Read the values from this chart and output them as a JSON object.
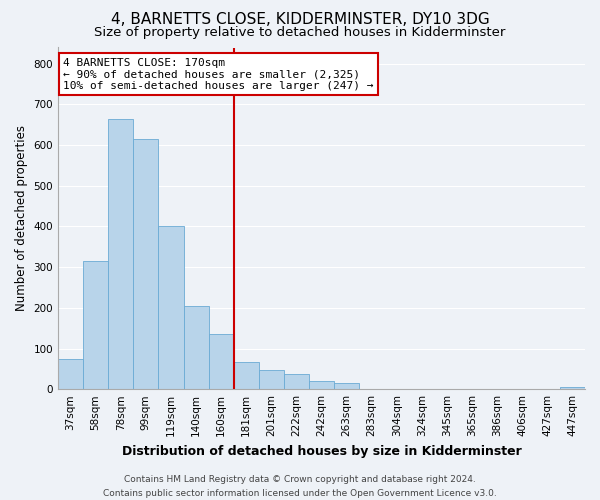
{
  "title": "4, BARNETTS CLOSE, KIDDERMINSTER, DY10 3DG",
  "subtitle": "Size of property relative to detached houses in Kidderminster",
  "xlabel": "Distribution of detached houses by size in Kidderminster",
  "ylabel": "Number of detached properties",
  "categories": [
    "37sqm",
    "58sqm",
    "78sqm",
    "99sqm",
    "119sqm",
    "140sqm",
    "160sqm",
    "181sqm",
    "201sqm",
    "222sqm",
    "242sqm",
    "263sqm",
    "283sqm",
    "304sqm",
    "324sqm",
    "345sqm",
    "365sqm",
    "386sqm",
    "406sqm",
    "427sqm",
    "447sqm"
  ],
  "values": [
    75,
    315,
    665,
    615,
    400,
    205,
    135,
    68,
    47,
    38,
    20,
    15,
    0,
    0,
    0,
    0,
    0,
    0,
    0,
    0,
    5
  ],
  "bar_color": "#b8d4ea",
  "bar_edge_color": "#6aaad4",
  "vline_x_index": 7,
  "vline_color": "#cc0000",
  "annotation_line1": "4 BARNETTS CLOSE: 170sqm",
  "annotation_line2": "← 90% of detached houses are smaller (2,325)",
  "annotation_line3": "10% of semi-detached houses are larger (247) →",
  "annotation_box_color": "#ffffff",
  "annotation_box_edge": "#cc0000",
  "ylim": [
    0,
    840
  ],
  "yticks": [
    0,
    100,
    200,
    300,
    400,
    500,
    600,
    700,
    800
  ],
  "background_color": "#eef2f7",
  "grid_color": "#ffffff",
  "footer_line1": "Contains HM Land Registry data © Crown copyright and database right 2024.",
  "footer_line2": "Contains public sector information licensed under the Open Government Licence v3.0.",
  "title_fontsize": 11,
  "subtitle_fontsize": 9.5,
  "xlabel_fontsize": 9,
  "ylabel_fontsize": 8.5,
  "tick_fontsize": 7.5,
  "annotation_fontsize": 8,
  "footer_fontsize": 6.5
}
